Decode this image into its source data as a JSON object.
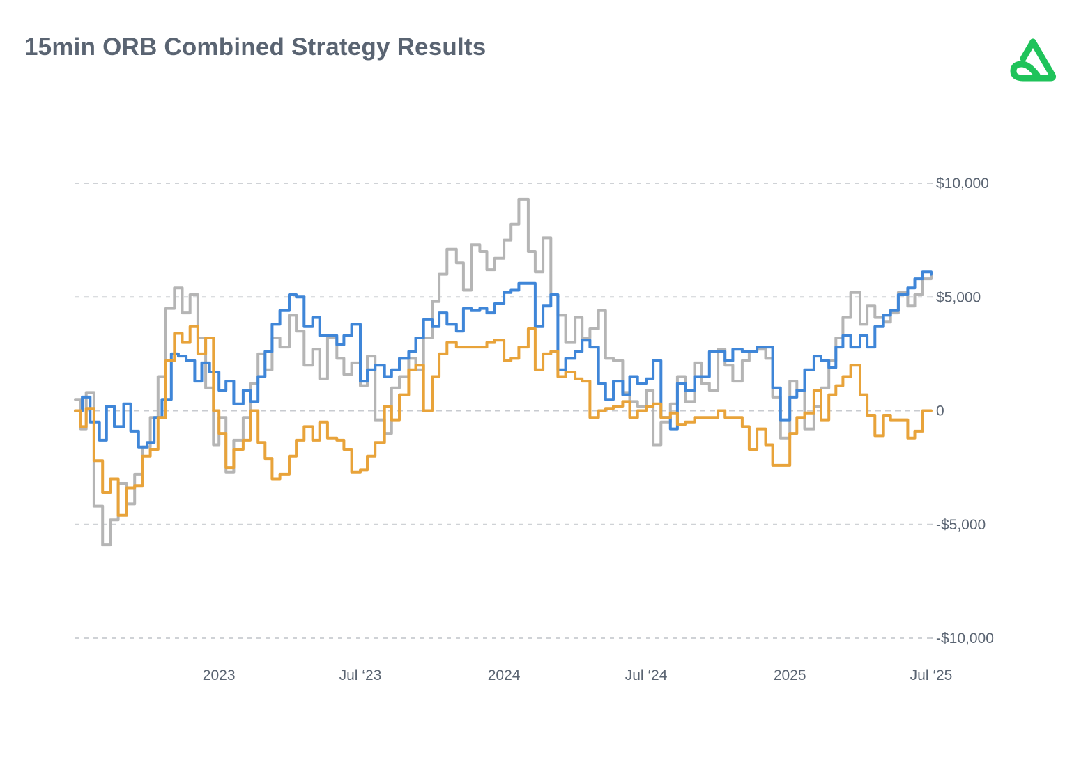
{
  "header": {
    "title": "15min ORB Combined Strategy Results",
    "logo_icon": "green-triangle-loop-logo-icon"
  },
  "colors": {
    "title": "#5a6472",
    "logo": "#1fc35a",
    "blue": "#3f86d8",
    "gray": "#b5b5b5",
    "orange": "#e8a33a",
    "grid": "#cfd2d6"
  },
  "chart_data": {
    "type": "line",
    "title": "15min ORB Combined Strategy Results",
    "xlabel": "",
    "ylabel": "",
    "y_axis_side": "right",
    "ylim": [
      -10000,
      10000
    ],
    "y_ticks": [
      10000,
      5000,
      0,
      -5000,
      -10000
    ],
    "y_tick_labels": [
      "$10,000",
      "$5,000",
      "0",
      "-$5,000",
      "-$10,000"
    ],
    "x_range": [
      "2022-07-01",
      "2025-07-01"
    ],
    "x_ticks": [
      "2023-01-01",
      "2023-07-01",
      "2024-01-01",
      "2024-07-01",
      "2025-01-01",
      "2025-07-01"
    ],
    "x_tick_labels": [
      "2023",
      "Jul ‘23",
      "2024",
      "Jul ‘24",
      "2025",
      "Jul ‘25"
    ],
    "grid": true,
    "legend": "none",
    "series": [
      {
        "color": "#b5b5b5",
        "x": [
          "2022-07-01",
          "2022-07-08",
          "2022-07-15",
          "2022-07-25",
          "2022-08-05",
          "2022-08-15",
          "2022-08-25",
          "2022-09-05",
          "2022-09-15",
          "2022-09-25",
          "2022-10-05",
          "2022-10-15",
          "2022-10-25",
          "2022-11-05",
          "2022-11-15",
          "2022-11-25",
          "2022-12-05",
          "2022-12-15",
          "2022-12-25",
          "2023-01-01",
          "2023-01-10",
          "2023-01-20",
          "2023-02-01",
          "2023-02-10",
          "2023-02-20",
          "2023-03-01",
          "2023-03-10",
          "2023-03-20",
          "2023-04-01",
          "2023-04-10",
          "2023-04-20",
          "2023-05-01",
          "2023-05-10",
          "2023-05-20",
          "2023-06-01",
          "2023-06-10",
          "2023-06-20",
          "2023-07-01",
          "2023-07-10",
          "2023-07-20",
          "2023-08-01",
          "2023-08-10",
          "2023-08-20",
          "2023-09-01",
          "2023-09-10",
          "2023-09-20",
          "2023-10-01",
          "2023-10-10",
          "2023-10-20",
          "2023-11-01",
          "2023-11-10",
          "2023-11-20",
          "2023-12-01",
          "2023-12-10",
          "2023-12-20",
          "2024-01-01",
          "2024-01-10",
          "2024-01-20",
          "2024-02-01",
          "2024-02-10",
          "2024-02-20",
          "2024-03-01",
          "2024-03-10",
          "2024-03-20",
          "2024-04-01",
          "2024-04-10",
          "2024-04-20",
          "2024-05-01",
          "2024-05-10",
          "2024-05-20",
          "2024-06-01",
          "2024-06-10",
          "2024-06-20",
          "2024-07-01",
          "2024-07-10",
          "2024-07-20",
          "2024-08-01",
          "2024-08-10",
          "2024-08-20",
          "2024-09-01",
          "2024-09-10",
          "2024-09-20",
          "2024-10-01",
          "2024-10-10",
          "2024-10-20",
          "2024-11-01",
          "2024-11-10",
          "2024-11-20",
          "2024-12-01",
          "2024-12-10",
          "2024-12-20",
          "2025-01-01",
          "2025-01-10",
          "2025-01-20",
          "2025-02-01",
          "2025-02-10",
          "2025-02-20",
          "2025-03-01",
          "2025-03-10",
          "2025-03-20",
          "2025-04-01",
          "2025-04-10",
          "2025-04-20",
          "2025-05-01",
          "2025-05-10",
          "2025-05-20",
          "2025-06-01",
          "2025-06-10",
          "2025-06-20",
          "2025-07-01"
        ],
        "y": [
          500,
          -800,
          800,
          -4200,
          -5900,
          -4800,
          -3200,
          -4100,
          -2800,
          -1600,
          -300,
          1500,
          4500,
          5400,
          4300,
          5100,
          3200,
          1000,
          -1500,
          -300,
          -2700,
          -1300,
          -300,
          1200,
          2500,
          1800,
          3200,
          2800,
          4200,
          3500,
          2000,
          2700,
          1400,
          3200,
          2300,
          1600,
          2100,
          1100,
          2400,
          -400,
          -1000,
          1000,
          1500,
          2300,
          1800,
          3200,
          4800,
          6000,
          7100,
          6500,
          5300,
          7300,
          7000,
          6200,
          6700,
          7500,
          8200,
          9300,
          7000,
          6100,
          7600,
          5100,
          4200,
          3000,
          4100,
          3200,
          3600,
          4400,
          2300,
          2200,
          800,
          400,
          200,
          900,
          -1500,
          -500,
          300,
          1500,
          400,
          2100,
          1200,
          900,
          2700,
          2000,
          1300,
          2200,
          2600,
          2700,
          2300,
          600,
          -1200,
          1300,
          900,
          -800,
          200,
          1000,
          2200,
          3200,
          4100,
          5200,
          3800,
          4600,
          4100,
          3900,
          4300,
          5200,
          4600,
          5100,
          5800,
          6000
        ]
      },
      {
        "color": "#3f86d8",
        "x": [
          "2022-07-01",
          "2022-07-10",
          "2022-07-20",
          "2022-08-01",
          "2022-08-10",
          "2022-08-20",
          "2022-09-01",
          "2022-09-10",
          "2022-09-20",
          "2022-10-01",
          "2022-10-10",
          "2022-10-20",
          "2022-11-01",
          "2022-11-10",
          "2022-11-20",
          "2022-12-01",
          "2022-12-10",
          "2022-12-20",
          "2023-01-01",
          "2023-01-10",
          "2023-01-20",
          "2023-02-01",
          "2023-02-10",
          "2023-02-20",
          "2023-03-01",
          "2023-03-10",
          "2023-03-20",
          "2023-04-01",
          "2023-04-10",
          "2023-04-20",
          "2023-05-01",
          "2023-05-10",
          "2023-05-20",
          "2023-06-01",
          "2023-06-10",
          "2023-06-20",
          "2023-07-01",
          "2023-07-10",
          "2023-07-20",
          "2023-08-01",
          "2023-08-10",
          "2023-08-20",
          "2023-09-01",
          "2023-09-10",
          "2023-09-20",
          "2023-10-01",
          "2023-10-10",
          "2023-10-20",
          "2023-11-01",
          "2023-11-10",
          "2023-11-20",
          "2023-12-01",
          "2023-12-10",
          "2023-12-20",
          "2024-01-01",
          "2024-01-10",
          "2024-01-20",
          "2024-02-01",
          "2024-02-10",
          "2024-02-20",
          "2024-03-01",
          "2024-03-10",
          "2024-03-20",
          "2024-04-01",
          "2024-04-10",
          "2024-04-20",
          "2024-05-01",
          "2024-05-10",
          "2024-05-20",
          "2024-06-01",
          "2024-06-10",
          "2024-06-20",
          "2024-07-01",
          "2024-07-10",
          "2024-07-20",
          "2024-08-01",
          "2024-08-10",
          "2024-08-20",
          "2024-09-01",
          "2024-09-10",
          "2024-09-20",
          "2024-10-01",
          "2024-10-10",
          "2024-10-20",
          "2024-11-01",
          "2024-11-10",
          "2024-11-20",
          "2024-12-01",
          "2024-12-10",
          "2024-12-20",
          "2025-01-01",
          "2025-01-10",
          "2025-01-20",
          "2025-02-01",
          "2025-02-10",
          "2025-02-20",
          "2025-03-01",
          "2025-03-10",
          "2025-03-20",
          "2025-04-01",
          "2025-04-10",
          "2025-04-20",
          "2025-05-01",
          "2025-05-10",
          "2025-05-20",
          "2025-06-01",
          "2025-06-10",
          "2025-06-20",
          "2025-07-01"
        ],
        "y": [
          0,
          600,
          -500,
          -1300,
          200,
          -700,
          300,
          -900,
          -1600,
          -1400,
          -300,
          500,
          2500,
          2400,
          2200,
          1300,
          2100,
          1700,
          900,
          1300,
          300,
          900,
          400,
          1500,
          2600,
          3800,
          4400,
          5100,
          5000,
          3700,
          4100,
          3300,
          3300,
          2900,
          3300,
          3800,
          1300,
          1800,
          2000,
          1500,
          1800,
          2300,
          2600,
          3200,
          4000,
          3700,
          4300,
          3800,
          3500,
          4500,
          4400,
          4500,
          4300,
          4700,
          5200,
          5300,
          5600,
          5600,
          3700,
          4600,
          5100,
          1800,
          2300,
          2600,
          3100,
          2800,
          1200,
          500,
          1300,
          700,
          1500,
          1200,
          1400,
          2200,
          -300,
          -800,
          1200,
          900,
          1500,
          1500,
          2600,
          2600,
          2200,
          2700,
          2600,
          2600,
          2800,
          2800,
          1000,
          -400,
          600,
          900,
          1800,
          2400,
          2200,
          1900,
          2800,
          3300,
          2800,
          3300,
          2800,
          3700,
          4200,
          4400,
          5100,
          5400,
          5800,
          6100,
          6000
        ]
      },
      {
        "color": "#e8a33a",
        "x": [
          "2022-07-01",
          "2022-07-08",
          "2022-07-15",
          "2022-07-25",
          "2022-08-05",
          "2022-08-15",
          "2022-08-25",
          "2022-09-05",
          "2022-09-15",
          "2022-09-25",
          "2022-10-05",
          "2022-10-15",
          "2022-10-25",
          "2022-11-05",
          "2022-11-15",
          "2022-11-25",
          "2022-12-05",
          "2022-12-15",
          "2022-12-25",
          "2023-01-01",
          "2023-01-10",
          "2023-01-20",
          "2023-02-01",
          "2023-02-10",
          "2023-02-20",
          "2023-03-01",
          "2023-03-10",
          "2023-03-20",
          "2023-04-01",
          "2023-04-10",
          "2023-04-20",
          "2023-05-01",
          "2023-05-10",
          "2023-05-20",
          "2023-06-01",
          "2023-06-10",
          "2023-06-20",
          "2023-07-01",
          "2023-07-10",
          "2023-07-20",
          "2023-08-01",
          "2023-08-10",
          "2023-08-20",
          "2023-09-01",
          "2023-09-10",
          "2023-09-20",
          "2023-10-01",
          "2023-10-10",
          "2023-10-20",
          "2023-11-01",
          "2023-11-10",
          "2023-11-20",
          "2023-12-01",
          "2023-12-10",
          "2023-12-20",
          "2024-01-01",
          "2024-01-10",
          "2024-01-20",
          "2024-02-01",
          "2024-02-10",
          "2024-02-20",
          "2024-03-01",
          "2024-03-10",
          "2024-03-20",
          "2024-04-01",
          "2024-04-10",
          "2024-04-20",
          "2024-05-01",
          "2024-05-10",
          "2024-05-20",
          "2024-06-01",
          "2024-06-10",
          "2024-06-20",
          "2024-07-01",
          "2024-07-10",
          "2024-07-20",
          "2024-08-01",
          "2024-08-10",
          "2024-08-20",
          "2024-09-01",
          "2024-09-10",
          "2024-09-20",
          "2024-10-01",
          "2024-10-10",
          "2024-10-20",
          "2024-11-01",
          "2024-11-10",
          "2024-11-20",
          "2024-12-01",
          "2024-12-10",
          "2024-12-20",
          "2025-01-01",
          "2025-01-10",
          "2025-01-20",
          "2025-02-01",
          "2025-02-10",
          "2025-02-20",
          "2025-03-01",
          "2025-03-10",
          "2025-03-20",
          "2025-04-01",
          "2025-04-10",
          "2025-04-20",
          "2025-05-01",
          "2025-05-10",
          "2025-05-20",
          "2025-06-01",
          "2025-06-10",
          "2025-06-20",
          "2025-07-01"
        ],
        "y": [
          0,
          -700,
          100,
          -2200,
          -3600,
          -3000,
          -4600,
          -3400,
          -3300,
          -2000,
          -1700,
          -300,
          2200,
          3400,
          3000,
          3700,
          2500,
          3200,
          0,
          -1000,
          -2500,
          -1700,
          -1300,
          0,
          -1400,
          -2100,
          -3000,
          -2800,
          -2000,
          -1300,
          -700,
          -1300,
          -500,
          -1200,
          -1300,
          -1700,
          -2700,
          -2600,
          -2000,
          -1400,
          200,
          -400,
          700,
          1800,
          2000,
          0,
          1500,
          2500,
          3000,
          2800,
          2800,
          2800,
          2800,
          3000,
          3100,
          2200,
          2300,
          2800,
          3600,
          1800,
          2500,
          2600,
          1500,
          1700,
          1400,
          1300,
          -300,
          0,
          100,
          200,
          400,
          -300,
          0,
          200,
          300,
          -300,
          -100,
          -600,
          -500,
          -300,
          -300,
          -300,
          0,
          -300,
          -300,
          -700,
          -1700,
          -800,
          -1500,
          -2400,
          -2400,
          -1000,
          -300,
          -100,
          900,
          -400,
          700,
          1100,
          1500,
          2000,
          700,
          -200,
          -1100,
          -200,
          -400,
          -400,
          -1200,
          -900,
          0,
          0
        ]
      }
    ]
  }
}
